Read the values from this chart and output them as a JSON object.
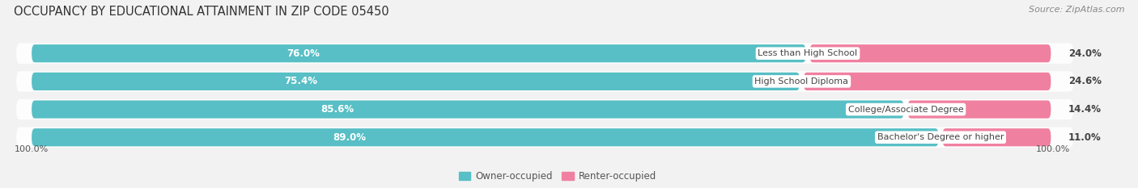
{
  "title": "OCCUPANCY BY EDUCATIONAL ATTAINMENT IN ZIP CODE 05450",
  "source": "Source: ZipAtlas.com",
  "categories": [
    "Less than High School",
    "High School Diploma",
    "College/Associate Degree",
    "Bachelor's Degree or higher"
  ],
  "owner_pct": [
    76.0,
    75.4,
    85.6,
    89.0
  ],
  "renter_pct": [
    24.0,
    24.6,
    14.4,
    11.0
  ],
  "owner_color": "#57bfc5",
  "renter_color": "#f080a0",
  "bg_color": "#f2f2f2",
  "row_bg_color": "#e8e8e8",
  "title_fontsize": 10.5,
  "label_fontsize": 8.5,
  "tick_fontsize": 8,
  "source_fontsize": 8,
  "legend_fontsize": 8.5,
  "bar_height": 0.62,
  "x_left_label": "100.0%",
  "x_right_label": "100.0%",
  "total_width": 100
}
